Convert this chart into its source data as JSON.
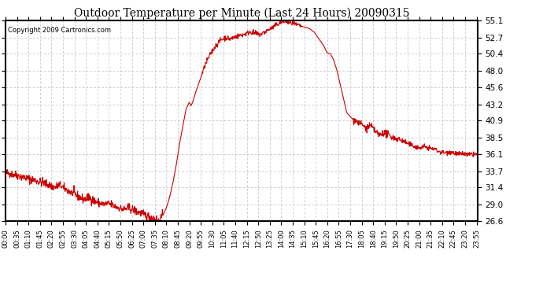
{
  "title": "Outdoor Temperature per Minute (Last 24 Hours) 20090315",
  "copyright": "Copyright 2009 Cartronics.com",
  "line_color": "#cc0000",
  "background_color": "#ffffff",
  "plot_bg_color": "#ffffff",
  "grid_color": "#bbbbbb",
  "yticks": [
    26.6,
    29.0,
    31.4,
    33.7,
    36.1,
    38.5,
    40.9,
    43.2,
    45.6,
    48.0,
    50.4,
    52.7,
    55.1
  ],
  "ymin": 26.6,
  "ymax": 55.1,
  "xtick_labels": [
    "00:00",
    "00:35",
    "01:10",
    "01:45",
    "02:20",
    "02:55",
    "03:30",
    "04:05",
    "04:40",
    "05:15",
    "05:50",
    "06:25",
    "07:00",
    "07:35",
    "08:10",
    "08:45",
    "09:20",
    "09:55",
    "10:30",
    "11:05",
    "11:40",
    "12:15",
    "12:50",
    "13:25",
    "14:00",
    "14:35",
    "15:10",
    "15:45",
    "16:20",
    "16:55",
    "17:30",
    "18:05",
    "18:40",
    "19:15",
    "19:50",
    "20:25",
    "21:00",
    "21:35",
    "22:10",
    "22:45",
    "23:20",
    "23:55"
  ]
}
